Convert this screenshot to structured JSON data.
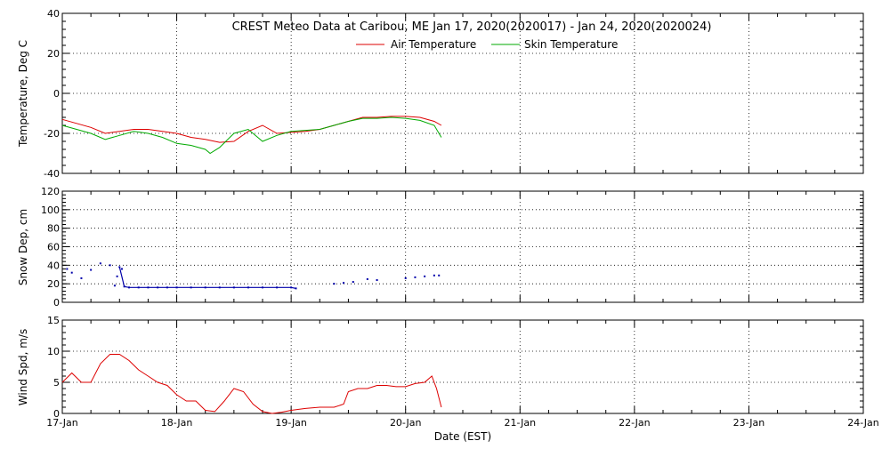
{
  "chart_data": [
    {
      "type": "line",
      "title": "CREST Meteo Data at Caribou, ME   Jan 17, 2020(2020017) - Jan 24, 2020(2020024)",
      "ylabel": "Temperature, Deg C",
      "ylim": [
        -40,
        40
      ],
      "yticks": [
        40,
        20,
        0,
        -20,
        -40
      ],
      "xlim": [
        "2020-01-17 00:00",
        "2020-01-24 00:00"
      ],
      "grid": true,
      "legend_position": "top-center",
      "series": [
        {
          "name": "Air Temperature",
          "color": "#dd0000",
          "x": [
            "2020-01-17 00:00",
            "2020-01-17 03:00",
            "2020-01-17 06:00",
            "2020-01-17 09:00",
            "2020-01-17 12:00",
            "2020-01-17 15:00",
            "2020-01-17 18:00",
            "2020-01-17 21:00",
            "2020-01-18 00:00",
            "2020-01-18 03:00",
            "2020-01-18 06:00",
            "2020-01-18 09:00",
            "2020-01-18 12:00",
            "2020-01-18 15:00",
            "2020-01-18 18:00",
            "2020-01-18 21:00",
            "2020-01-19 00:00",
            "2020-01-19 03:00",
            "2020-01-19 06:00",
            "2020-01-19 09:00",
            "2020-01-19 12:00",
            "2020-01-19 15:00",
            "2020-01-19 18:00",
            "2020-01-19 21:00",
            "2020-01-20 00:00",
            "2020-01-20 03:00",
            "2020-01-20 06:00",
            "2020-01-20 07:30"
          ],
          "values": [
            -13,
            -15,
            -17,
            -20,
            -19,
            -18,
            -18,
            -19,
            -20,
            -22,
            -23,
            -24.5,
            -24,
            -19,
            -16,
            -20,
            -19.5,
            -19,
            -18,
            -16,
            -14,
            -12,
            -12,
            -11.5,
            -11.5,
            -12,
            -14,
            -16
          ]
        },
        {
          "name": "Skin Temperature",
          "color": "#00aa00",
          "x": [
            "2020-01-17 00:00",
            "2020-01-17 03:00",
            "2020-01-17 06:00",
            "2020-01-17 09:00",
            "2020-01-17 12:00",
            "2020-01-17 15:00",
            "2020-01-17 18:00",
            "2020-01-17 21:00",
            "2020-01-18 00:00",
            "2020-01-18 03:00",
            "2020-01-18 06:00",
            "2020-01-18 07:00",
            "2020-01-18 09:00",
            "2020-01-18 12:00",
            "2020-01-18 15:00",
            "2020-01-18 18:00",
            "2020-01-18 21:00",
            "2020-01-19 00:00",
            "2020-01-19 03:00",
            "2020-01-19 06:00",
            "2020-01-19 09:00",
            "2020-01-19 12:00",
            "2020-01-19 15:00",
            "2020-01-19 18:00",
            "2020-01-19 21:00",
            "2020-01-20 00:00",
            "2020-01-20 03:00",
            "2020-01-20 06:00",
            "2020-01-20 07:30"
          ],
          "values": [
            -16,
            -18,
            -20,
            -23,
            -21,
            -19,
            -20,
            -22,
            -25,
            -26,
            -28,
            -30,
            -27,
            -20,
            -18,
            -24,
            -21,
            -19,
            -18.5,
            -18,
            -16,
            -14,
            -12.5,
            -12.5,
            -12,
            -12.5,
            -13.5,
            -16,
            -22
          ]
        }
      ]
    },
    {
      "type": "scatter",
      "ylabel": "Snow Dep, cm",
      "ylim": [
        0,
        120
      ],
      "yticks": [
        120,
        100,
        80,
        60,
        40,
        20,
        0
      ],
      "xlim": [
        "2020-01-17 00:00",
        "2020-01-24 00:00"
      ],
      "grid": true,
      "series": [
        {
          "color": "#0000aa",
          "x": [
            "2020-01-17 01:00",
            "2020-01-17 02:00",
            "2020-01-17 04:00",
            "2020-01-17 06:00",
            "2020-01-17 08:00",
            "2020-01-17 10:00",
            "2020-01-17 11:00",
            "2020-01-17 11:30",
            "2020-01-17 12:00",
            "2020-01-17 12:30",
            "2020-01-17 13:00",
            "2020-01-17 14:00",
            "2020-01-17 16:00",
            "2020-01-17 18:00",
            "2020-01-17 20:00",
            "2020-01-17 22:00",
            "2020-01-18 00:00",
            "2020-01-18 03:00",
            "2020-01-18 06:00",
            "2020-01-18 09:00",
            "2020-01-18 12:00",
            "2020-01-18 15:00",
            "2020-01-18 18:00",
            "2020-01-18 21:00",
            "2020-01-19 00:00",
            "2020-01-19 01:00",
            "2020-01-19 09:00",
            "2020-01-19 11:00",
            "2020-01-19 13:00",
            "2020-01-19 16:00",
            "2020-01-19 18:00",
            "2020-01-20 00:00",
            "2020-01-20 02:00",
            "2020-01-20 04:00",
            "2020-01-20 06:00",
            "2020-01-20 07:00"
          ],
          "values": [
            36,
            32,
            26,
            35,
            42,
            40,
            18,
            28,
            38,
            36,
            17,
            16,
            16,
            16,
            16,
            16,
            16,
            16,
            16,
            16,
            16,
            16,
            16,
            16,
            16,
            15,
            20,
            21,
            22,
            25,
            24,
            26,
            27,
            28,
            29,
            29
          ]
        }
      ]
    },
    {
      "type": "line",
      "ylabel": "Wind Spd, m/s",
      "xlabel": "Date (EST)",
      "ylim": [
        0,
        15
      ],
      "yticks": [
        15,
        10,
        5,
        0
      ],
      "xlim": [
        "2020-01-17 00:00",
        "2020-01-24 00:00"
      ],
      "xticks": [
        "17-Jan",
        "18-Jan",
        "19-Jan",
        "20-Jan",
        "21-Jan",
        "22-Jan",
        "23-Jan",
        "24-Jan"
      ],
      "grid": true,
      "series": [
        {
          "color": "#dd0000",
          "x": [
            "2020-01-17 00:00",
            "2020-01-17 02:00",
            "2020-01-17 04:00",
            "2020-01-17 06:00",
            "2020-01-17 08:00",
            "2020-01-17 10:00",
            "2020-01-17 12:00",
            "2020-01-17 14:00",
            "2020-01-17 16:00",
            "2020-01-17 18:00",
            "2020-01-17 20:00",
            "2020-01-17 22:00",
            "2020-01-18 00:00",
            "2020-01-18 02:00",
            "2020-01-18 04:00",
            "2020-01-18 06:00",
            "2020-01-18 08:00",
            "2020-01-18 10:00",
            "2020-01-18 12:00",
            "2020-01-18 14:00",
            "2020-01-18 16:00",
            "2020-01-18 18:00",
            "2020-01-18 20:00",
            "2020-01-18 22:00",
            "2020-01-19 00:00",
            "2020-01-19 03:00",
            "2020-01-19 06:00",
            "2020-01-19 09:00",
            "2020-01-19 11:00",
            "2020-01-19 12:00",
            "2020-01-19 14:00",
            "2020-01-19 16:00",
            "2020-01-19 18:00",
            "2020-01-19 20:00",
            "2020-01-19 22:00",
            "2020-01-20 00:00",
            "2020-01-20 02:00",
            "2020-01-20 04:00",
            "2020-01-20 05:30",
            "2020-01-20 06:30",
            "2020-01-20 07:30"
          ],
          "values": [
            5,
            6.5,
            5,
            5,
            8,
            9.5,
            9.5,
            8.5,
            7,
            6,
            5,
            4.5,
            3,
            2,
            2,
            0.5,
            0.3,
            2,
            4,
            3.5,
            1.5,
            0.3,
            0,
            0.2,
            0.5,
            0.8,
            1,
            1,
            1.5,
            3.5,
            4,
            4,
            4.5,
            4.5,
            4.3,
            4.3,
            4.8,
            5,
            6,
            4,
            1
          ]
        }
      ]
    }
  ]
}
